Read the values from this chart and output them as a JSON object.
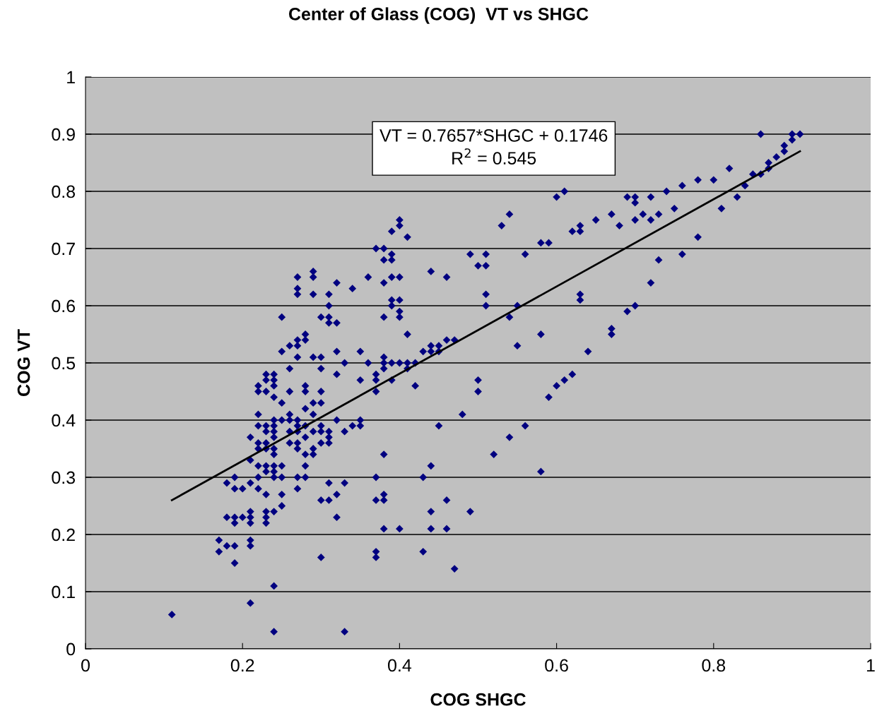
{
  "chart_data": {
    "type": "scatter",
    "title": "Center of Glass (COG)  VT vs SHGC",
    "xlabel": "COG SHGC",
    "ylabel": "COG VT",
    "xlim": [
      0,
      1
    ],
    "xticks": [
      0,
      0.2,
      0.4,
      0.6,
      0.8,
      1
    ],
    "ylim": [
      0,
      1
    ],
    "yticks": [
      0,
      0.1,
      0.2,
      0.3,
      0.4,
      0.5,
      0.6,
      0.7,
      0.8,
      0.9,
      1
    ],
    "grid": "y",
    "legend": false,
    "annotations": [
      "VT = 0.7657*SHGC + 0.1746\nR$^{2}$ = 0.545"
    ],
    "series": [
      {
        "marker": "diamond",
        "color": "#000080",
        "x": [
          0.11,
          0.21,
          0.24,
          0.24,
          0.33,
          0.17,
          0.17,
          0.18,
          0.19,
          0.19,
          0.18,
          0.19,
          0.19,
          0.2,
          0.21,
          0.21,
          0.21,
          0.21,
          0.21,
          0.18,
          0.19,
          0.19,
          0.2,
          0.21,
          0.21,
          0.21,
          0.22,
          0.22,
          0.22,
          0.22,
          0.22,
          0.22,
          0.22,
          0.23,
          0.23,
          0.23,
          0.23,
          0.24,
          0.23,
          0.23,
          0.23,
          0.23,
          0.23,
          0.23,
          0.22,
          0.22,
          0.23,
          0.23,
          0.23,
          0.24,
          0.24,
          0.24,
          0.24,
          0.24,
          0.24,
          0.24,
          0.24,
          0.24,
          0.24,
          0.24,
          0.24,
          0.24,
          0.25,
          0.25,
          0.25,
          0.25,
          0.25,
          0.25,
          0.25,
          0.25,
          0.26,
          0.26,
          0.26,
          0.26,
          0.26,
          0.26,
          0.26,
          0.27,
          0.27,
          0.27,
          0.27,
          0.27,
          0.27,
          0.27,
          0.27,
          0.27,
          0.27,
          0.27,
          0.27,
          0.27,
          0.28,
          0.28,
          0.28,
          0.28,
          0.28,
          0.28,
          0.28,
          0.28,
          0.28,
          0.28,
          0.29,
          0.29,
          0.29,
          0.29,
          0.29,
          0.29,
          0.29,
          0.29,
          0.29,
          0.3,
          0.3,
          0.3,
          0.3,
          0.3,
          0.3,
          0.3,
          0.3,
          0.3,
          0.3,
          0.31,
          0.31,
          0.31,
          0.31,
          0.31,
          0.31,
          0.31,
          0.31,
          0.31,
          0.32,
          0.32,
          0.32,
          0.32,
          0.32,
          0.32,
          0.32,
          0.33,
          0.33,
          0.33,
          0.34,
          0.34,
          0.35,
          0.35,
          0.35,
          0.35,
          0.36,
          0.36,
          0.37,
          0.37,
          0.37,
          0.37,
          0.37,
          0.37,
          0.37,
          0.37,
          0.38,
          0.38,
          0.38,
          0.38,
          0.38,
          0.38,
          0.38,
          0.38,
          0.38,
          0.38,
          0.38,
          0.39,
          0.39,
          0.39,
          0.39,
          0.39,
          0.39,
          0.39,
          0.39,
          0.4,
          0.4,
          0.4,
          0.4,
          0.4,
          0.4,
          0.4,
          0.4,
          0.41,
          0.41,
          0.41,
          0.41,
          0.42,
          0.42,
          0.43,
          0.43,
          0.43,
          0.44,
          0.44,
          0.44,
          0.44,
          0.44,
          0.44,
          0.45,
          0.45,
          0.45,
          0.46,
          0.46,
          0.46,
          0.46,
          0.47,
          0.47,
          0.48,
          0.49,
          0.49,
          0.5,
          0.5,
          0.5,
          0.51,
          0.51,
          0.51,
          0.51,
          0.52,
          0.53,
          0.54,
          0.54,
          0.54,
          0.55,
          0.55,
          0.56,
          0.56,
          0.58,
          0.58,
          0.58,
          0.59,
          0.59,
          0.6,
          0.6,
          0.61,
          0.61,
          0.62,
          0.62,
          0.63,
          0.63,
          0.63,
          0.63,
          0.64,
          0.65,
          0.67,
          0.67,
          0.67,
          0.68,
          0.69,
          0.69,
          0.7,
          0.7,
          0.7,
          0.7,
          0.71,
          0.72,
          0.72,
          0.72,
          0.73,
          0.73,
          0.74,
          0.75,
          0.76,
          0.76,
          0.78,
          0.78,
          0.8,
          0.81,
          0.82,
          0.83,
          0.84,
          0.85,
          0.86,
          0.86,
          0.87,
          0.87,
          0.88,
          0.89,
          0.89,
          0.9,
          0.9,
          0.91
        ],
        "values": [
          0.06,
          0.08,
          0.11,
          0.03,
          0.03,
          0.19,
          0.17,
          0.18,
          0.18,
          0.15,
          0.23,
          0.23,
          0.22,
          0.23,
          0.24,
          0.23,
          0.22,
          0.19,
          0.18,
          0.29,
          0.3,
          0.28,
          0.28,
          0.29,
          0.33,
          0.37,
          0.41,
          0.39,
          0.36,
          0.35,
          0.32,
          0.3,
          0.28,
          0.27,
          0.24,
          0.23,
          0.22,
          0.24,
          0.31,
          0.32,
          0.35,
          0.36,
          0.38,
          0.39,
          0.45,
          0.46,
          0.45,
          0.47,
          0.48,
          0.48,
          0.47,
          0.46,
          0.44,
          0.4,
          0.39,
          0.38,
          0.37,
          0.35,
          0.34,
          0.32,
          0.31,
          0.3,
          0.3,
          0.32,
          0.27,
          0.25,
          0.4,
          0.43,
          0.52,
          0.58,
          0.53,
          0.49,
          0.45,
          0.41,
          0.4,
          0.38,
          0.36,
          0.54,
          0.53,
          0.51,
          0.62,
          0.63,
          0.65,
          0.4,
          0.39,
          0.38,
          0.36,
          0.35,
          0.3,
          0.28,
          0.55,
          0.54,
          0.46,
          0.45,
          0.42,
          0.39,
          0.37,
          0.34,
          0.32,
          0.3,
          0.66,
          0.65,
          0.62,
          0.51,
          0.43,
          0.41,
          0.38,
          0.35,
          0.34,
          0.51,
          0.49,
          0.45,
          0.43,
          0.39,
          0.38,
          0.36,
          0.26,
          0.16,
          0.58,
          0.62,
          0.6,
          0.58,
          0.57,
          0.38,
          0.37,
          0.36,
          0.29,
          0.26,
          0.64,
          0.57,
          0.52,
          0.48,
          0.4,
          0.27,
          0.23,
          0.5,
          0.38,
          0.29,
          0.63,
          0.39,
          0.52,
          0.47,
          0.4,
          0.39,
          0.65,
          0.5,
          0.7,
          0.48,
          0.47,
          0.45,
          0.3,
          0.26,
          0.17,
          0.16,
          0.7,
          0.68,
          0.64,
          0.58,
          0.51,
          0.5,
          0.49,
          0.34,
          0.27,
          0.26,
          0.21,
          0.73,
          0.69,
          0.68,
          0.65,
          0.61,
          0.6,
          0.5,
          0.47,
          0.75,
          0.74,
          0.65,
          0.61,
          0.59,
          0.58,
          0.5,
          0.21,
          0.72,
          0.55,
          0.5,
          0.49,
          0.5,
          0.46,
          0.52,
          0.3,
          0.17,
          0.66,
          0.53,
          0.52,
          0.32,
          0.24,
          0.21,
          0.53,
          0.52,
          0.39,
          0.65,
          0.54,
          0.26,
          0.21,
          0.54,
          0.14,
          0.41,
          0.69,
          0.24,
          0.67,
          0.47,
          0.45,
          0.69,
          0.67,
          0.62,
          0.6,
          0.34,
          0.74,
          0.76,
          0.58,
          0.37,
          0.6,
          0.53,
          0.69,
          0.39,
          0.71,
          0.55,
          0.31,
          0.71,
          0.44,
          0.79,
          0.46,
          0.8,
          0.47,
          0.73,
          0.48,
          0.74,
          0.73,
          0.62,
          0.61,
          0.52,
          0.75,
          0.76,
          0.56,
          0.55,
          0.74,
          0.79,
          0.59,
          0.79,
          0.78,
          0.75,
          0.6,
          0.76,
          0.79,
          0.75,
          0.64,
          0.76,
          0.68,
          0.8,
          0.77,
          0.81,
          0.69,
          0.82,
          0.72,
          0.82,
          0.77,
          0.84,
          0.79,
          0.81,
          0.83,
          0.9,
          0.83,
          0.85,
          0.84,
          0.86,
          0.88,
          0.87,
          0.9,
          0.89,
          0.9
        ]
      },
      {
        "type": "line",
        "color": "#000000",
        "x": [
          0.11,
          0.91
        ],
        "values": [
          0.26,
          0.87
        ]
      }
    ]
  }
}
